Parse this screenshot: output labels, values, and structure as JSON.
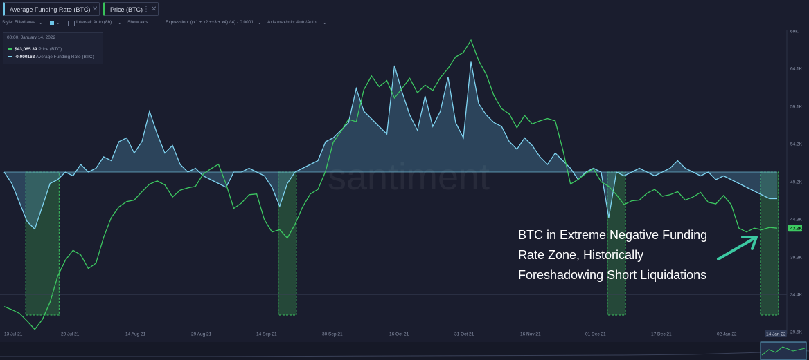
{
  "tabs": [
    {
      "label": "Average Funding Rate (BTC)",
      "active": true
    },
    {
      "label": "Price (BTC)",
      "active": false
    }
  ],
  "toolbar": {
    "style": "Style: Filled area",
    "interval": "Interval: Auto (8h)",
    "show_axis": "Show axis",
    "expression": "Expression: ((x1 + x2 +x3 + x4) / 4) - 0.0001",
    "axis_maxmin": "Axis max/min: Auto/Auto"
  },
  "legend": {
    "date": "00:00, January 14, 2022",
    "price_value": "$43,065.39",
    "price_label": "Price (BTC)",
    "funding_value": "-0.000163",
    "funding_label": "Average Funding Rate (BTC)"
  },
  "watermark": "santiment",
  "annotation": {
    "lines": [
      "BTC in Extreme Negative Funding",
      "Rate Zone, Historically",
      "Foreshadowing Short Liquidations"
    ]
  },
  "colors": {
    "background": "#1a1d2e",
    "price": "#3dc861",
    "funding": "#7fd3f0",
    "funding_fill": "#4f8fb0",
    "zone_fill": "#2f6b43",
    "zone_border": "#3dc861",
    "arrow": "#3cc9a2"
  },
  "chart_data": {
    "type": "line",
    "x_tick_labels": [
      "13 Jul 21",
      "29 Jul 21",
      "14 Aug 21",
      "29 Aug 21",
      "14 Sep 21",
      "30 Sep 21",
      "16 Oct 21",
      "31 Oct 21",
      "16 Nov 21",
      "01 Dec 21",
      "17 Dec 21",
      "02 Jan 22",
      "14 Jan 22"
    ],
    "y_right_ticks": [
      "69K",
      "64.1K",
      "59.1K",
      "54.2K",
      "49.2K",
      "44.3K",
      "39.3K",
      "34.4K",
      "29.5K"
    ],
    "y_range": [
      29.5,
      69
    ],
    "price_current_label": "43.2K",
    "series": [
      {
        "name": "Price (BTC)",
        "unit": "K USD",
        "values": [
          32.8,
          32.4,
          31.9,
          30.9,
          29.8,
          31.1,
          33.4,
          36.8,
          38.9,
          40.2,
          39.6,
          37.8,
          38.5,
          41.9,
          44.5,
          45.9,
          46.6,
          46.8,
          47.9,
          48.9,
          49.3,
          48.8,
          47.2,
          48.1,
          48.4,
          48.6,
          50.2,
          50.9,
          51.5,
          48.9,
          45.7,
          46.4,
          47.5,
          47.6,
          44.2,
          42.6,
          42.9,
          41.8,
          43.6,
          45.9,
          47.6,
          48.2,
          50.6,
          54.4,
          55.8,
          57.4,
          57.1,
          61.3,
          63.1,
          61.7,
          62.5,
          60.2,
          61.5,
          62.8,
          60.9,
          61.9,
          61.2,
          62.9,
          64.1,
          65.6,
          66.2,
          67.8,
          65.1,
          63.3,
          60.5,
          58.8,
          58.1,
          56.3,
          57.9,
          56.8,
          57.2,
          57.5,
          57.2,
          53.4,
          48.9,
          49.5,
          50.3,
          50.9,
          49.2,
          48.6,
          47.5,
          46.2,
          46.7,
          46.8,
          47.7,
          48.2,
          47.3,
          47.5,
          47.9,
          46.8,
          47.2,
          47.8,
          46.5,
          46.3,
          47.4,
          46.2,
          43.1,
          42.6,
          43.1,
          42.9,
          43.2,
          43.1
        ]
      },
      {
        "name": "Average Funding Rate (BTC)",
        "unit": "relative level",
        "values": [
          0,
          -0.3,
          -0.8,
          -1.3,
          -1.5,
          -0.9,
          -0.3,
          -0.2,
          0,
          -0.1,
          0.2,
          0,
          0.1,
          0.4,
          0.3,
          0.8,
          0.9,
          0.5,
          0.8,
          1.6,
          1,
          0.5,
          0.7,
          0.2,
          0,
          0.1,
          -0.1,
          -0.2,
          -0.3,
          -0.4,
          0,
          0,
          0.1,
          0,
          -0.1,
          -0.4,
          -0.9,
          -0.3,
          0,
          0.1,
          0.2,
          0.3,
          0.8,
          0.9,
          1.1,
          1.3,
          2.2,
          1.6,
          1.4,
          1.2,
          1,
          2.8,
          2.1,
          1.5,
          1.1,
          2,
          1.2,
          1.6,
          2.5,
          1.3,
          0.9,
          2.9,
          1.8,
          1.5,
          1.3,
          1.2,
          0.8,
          0.6,
          0.9,
          0.7,
          0.4,
          0.2,
          0.5,
          0.3,
          0.1,
          -0.2,
          0,
          0.1,
          0,
          -1.2,
          0,
          -0.1,
          0,
          0.1,
          0,
          -0.1,
          0,
          0.1,
          0.3,
          0.1,
          0,
          -0.1,
          0,
          -0.2,
          -0.1,
          -0.2,
          -0.3,
          -0.4,
          -0.5,
          -0.6,
          -0.7,
          -0.7
        ]
      }
    ],
    "highlight_zones": [
      {
        "label": "Extreme negative funding",
        "start_index": 3,
        "end_index": 7
      },
      {
        "label": "Extreme negative funding",
        "start_index": 36,
        "end_index": 38
      },
      {
        "label": "Extreme negative funding",
        "start_index": 79,
        "end_index": 81
      },
      {
        "label": "Extreme negative funding",
        "start_index": 99,
        "end_index": 101
      }
    ],
    "title": "",
    "xlabel": "",
    "ylabel": "",
    "grid": false,
    "legend_placement": "top-left"
  }
}
